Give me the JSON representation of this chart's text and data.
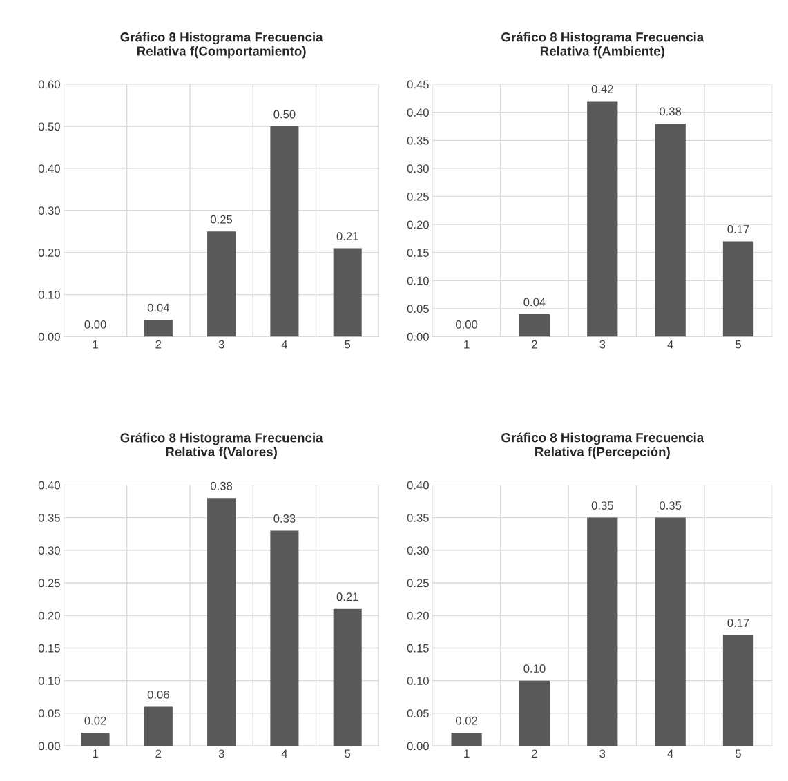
{
  "chart_data": [
    {
      "type": "bar",
      "title": "Gráfico 8 Histograma Frecuencia\nRelativa f(Comportamiento)",
      "categories": [
        "1",
        "2",
        "3",
        "4",
        "5"
      ],
      "values": [
        0.0,
        0.04,
        0.25,
        0.5,
        0.21
      ],
      "value_labels": [
        "0.00",
        "0.04",
        "0.25",
        "0.50",
        "0.21"
      ],
      "color": "#595959",
      "ylim": [
        0,
        0.6
      ],
      "yticks": [
        {
          "value": 0,
          "label": "0.00"
        },
        {
          "value": 0.1,
          "label": "0.10"
        },
        {
          "value": 0.2,
          "label": "0.20"
        },
        {
          "value": 0.3,
          "label": "0.30"
        },
        {
          "value": 0.4,
          "label": "0.40"
        },
        {
          "value": 0.5,
          "label": "0.50"
        },
        {
          "value": 0.6,
          "label": "0.60"
        }
      ],
      "grid": true,
      "legend": false
    },
    {
      "type": "bar",
      "title": "Gráfico 8 Histograma Frecuencia\nRelativa f(Ambiente)",
      "categories": [
        "1",
        "2",
        "3",
        "4",
        "5"
      ],
      "values": [
        0.0,
        0.04,
        0.42,
        0.38,
        0.17
      ],
      "value_labels": [
        "0.00",
        "0.04",
        "0.42",
        "0.38",
        "0.17"
      ],
      "color": "#595959",
      "ylim": [
        0,
        0.45
      ],
      "yticks": [
        {
          "value": 0,
          "label": "0.00"
        },
        {
          "value": 0.05,
          "label": "0.05"
        },
        {
          "value": 0.1,
          "label": "0.10"
        },
        {
          "value": 0.15,
          "label": "0.15"
        },
        {
          "value": 0.2,
          "label": "0.20"
        },
        {
          "value": 0.25,
          "label": "0.25"
        },
        {
          "value": 0.3,
          "label": "0.30"
        },
        {
          "value": 0.35,
          "label": "0.35"
        },
        {
          "value": 0.4,
          "label": "0.40"
        },
        {
          "value": 0.45,
          "label": "0.45"
        }
      ],
      "grid": true,
      "legend": false
    },
    {
      "type": "bar",
      "title": "Gráfico 8 Histograma Frecuencia\nRelativa f(Valores)",
      "categories": [
        "1",
        "2",
        "3",
        "4",
        "5"
      ],
      "values": [
        0.02,
        0.06,
        0.38,
        0.33,
        0.21
      ],
      "value_labels": [
        "0.02",
        "0.06",
        "0.38",
        "0.33",
        "0.21"
      ],
      "color": "#595959",
      "ylim": [
        0,
        0.4
      ],
      "yticks": [
        {
          "value": 0,
          "label": "0.00"
        },
        {
          "value": 0.05,
          "label": "0.05"
        },
        {
          "value": 0.1,
          "label": "0.10"
        },
        {
          "value": 0.15,
          "label": "0.15"
        },
        {
          "value": 0.2,
          "label": "0.20"
        },
        {
          "value": 0.25,
          "label": "0.25"
        },
        {
          "value": 0.3,
          "label": "0.30"
        },
        {
          "value": 0.35,
          "label": "0.35"
        },
        {
          "value": 0.4,
          "label": "0.40"
        }
      ],
      "grid": true,
      "legend": false
    },
    {
      "type": "bar",
      "title": "Gráfico 8 Histograma Frecuencia\nRelativa f(Percepción)",
      "categories": [
        "1",
        "2",
        "3",
        "4",
        "5"
      ],
      "values": [
        0.02,
        0.1,
        0.35,
        0.35,
        0.17
      ],
      "value_labels": [
        "0.02",
        "0.10",
        "0.35",
        "0.35",
        "0.17"
      ],
      "color": "#595959",
      "ylim": [
        0,
        0.4
      ],
      "yticks": [
        {
          "value": 0,
          "label": "0.00"
        },
        {
          "value": 0.05,
          "label": "0.05"
        },
        {
          "value": 0.1,
          "label": "0.10"
        },
        {
          "value": 0.15,
          "label": "0.15"
        },
        {
          "value": 0.2,
          "label": "0.20"
        },
        {
          "value": 0.25,
          "label": "0.25"
        },
        {
          "value": 0.3,
          "label": "0.30"
        },
        {
          "value": 0.35,
          "label": "0.35"
        },
        {
          "value": 0.4,
          "label": "0.40"
        }
      ],
      "grid": true,
      "legend": false
    }
  ]
}
